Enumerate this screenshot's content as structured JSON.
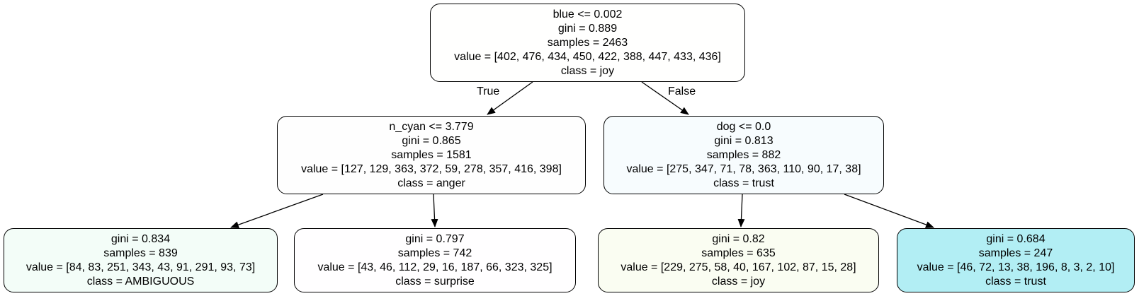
{
  "tree": {
    "edges": {
      "true_label": "True",
      "false_label": "False"
    },
    "nodes": [
      {
        "id": "root",
        "split": "blue <= 0.002",
        "gini": "gini = 0.889",
        "samples": "samples = 2463",
        "value": "value = [402, 476, 434, 450, 422, 388, 447, 433, 436]",
        "class": "class = joy",
        "fill": "#fffffe"
      },
      {
        "id": "left",
        "split": "n_cyan <= 3.779",
        "gini": "gini = 0.865",
        "samples": "samples = 1581",
        "value": "value = [127, 129, 363, 372, 59, 278, 357, 416, 398]",
        "class": "class = anger",
        "fill": "#fefefe"
      },
      {
        "id": "right",
        "split": "dog <= 0.0",
        "gini": "gini = 0.813",
        "samples": "samples = 882",
        "value": "value = [275, 347, 71, 78, 363, 110, 90, 17, 38]",
        "class": "class = trust",
        "fill": "#f7fcfe"
      },
      {
        "id": "leaf-ambiguous",
        "split": "",
        "gini": "gini = 0.834",
        "samples": "samples = 839",
        "value": "value = [84, 83, 251, 343, 43, 91, 291, 93, 73]",
        "class": "class = AMBIGUOUS",
        "fill": "#f3fdf8"
      },
      {
        "id": "leaf-surprise",
        "split": "",
        "gini": "gini = 0.797",
        "samples": "samples = 742",
        "value": "value = [43, 46, 112, 29, 16, 187, 66, 323, 325]",
        "class": "class = surprise",
        "fill": "#fffeff"
      },
      {
        "id": "leaf-joy",
        "split": "",
        "gini": "gini = 0.82",
        "samples": "samples = 635",
        "value": "value = [229, 275, 58, 40, 167, 102, 87, 15, 28]",
        "class": "class = joy",
        "fill": "#fafdf2"
      },
      {
        "id": "leaf-trust",
        "split": "",
        "gini": "gini = 0.684",
        "samples": "samples = 247",
        "value": "value = [46, 72, 13, 38, 196, 8, 3, 2, 10]",
        "class": "class = trust",
        "fill": "#b2eef4"
      }
    ]
  }
}
